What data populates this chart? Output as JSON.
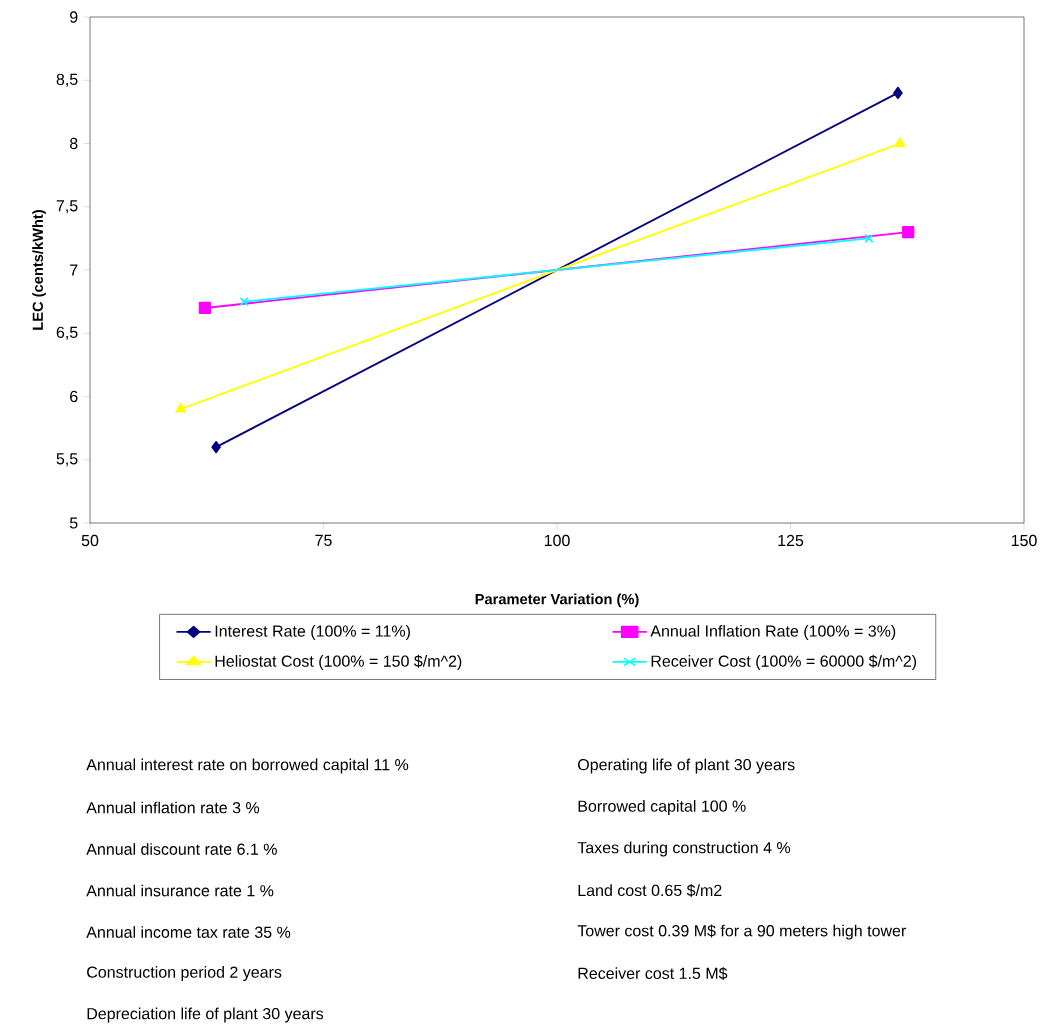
{
  "chart_data": {
    "type": "line",
    "xlabel": "Parameter Variation (%)",
    "ylabel": "LEC (cents/kWht)",
    "xlim": [
      50,
      150
    ],
    "ylim": [
      5,
      9
    ],
    "xticks": [
      50,
      75,
      100,
      125,
      150
    ],
    "yticks": [
      5,
      {
        "value": 5.5,
        "label": "5,5"
      },
      6,
      {
        "value": 6.5,
        "label": "6,5"
      },
      7,
      {
        "value": 7.5,
        "label": "7,5"
      },
      8,
      {
        "value": 8.5,
        "label": "8,5"
      },
      9
    ],
    "legend": "bottom",
    "grid": false,
    "series": [
      {
        "name": "Interest Rate (100% = 11%)",
        "color": "#000080",
        "marker": "diamond",
        "x": [
          63.5,
          136.5
        ],
        "values": [
          5.6,
          8.4
        ]
      },
      {
        "name": "Annual Inflation Rate (100% = 3%)",
        "color": "#ff00ff",
        "marker": "square",
        "x": [
          62.3,
          137.6
        ],
        "values": [
          6.7,
          7.3
        ]
      },
      {
        "name": "Heliostat Cost (100% = 150 $/m^2)",
        "color": "#ffff00",
        "marker": "triangle",
        "x": [
          59.7,
          136.7
        ],
        "values": [
          5.9,
          8.0
        ]
      },
      {
        "name": "Receiver Cost (100% = 60000 $/m^2)",
        "color": "#00ffff",
        "marker": "cross",
        "x": [
          66.5,
          133.4
        ],
        "values": [
          6.75,
          7.25
        ]
      }
    ],
    "annotations": [
      "Annual interest rate on borrowed capital 11 %",
      "Operating life of plant 30 years",
      "Annual inflation rate 3 %",
      "Borrowed capital 100 %",
      "Annual discount rate 6.1 %",
      "Taxes during construction 4 %",
      "Annual insurance rate 1 %",
      "Land cost 0.65 $/m2",
      "Annual income tax rate 35 %",
      "Tower cost 0.39 M$ for a 90 meters high tower",
      "Construction period 2 years",
      "Receiver cost 1.5 M$",
      "Depreciation life of plant 30 years"
    ]
  }
}
